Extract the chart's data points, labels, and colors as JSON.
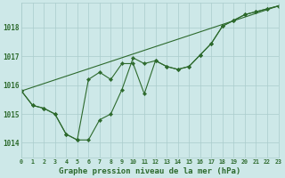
{
  "xlabel": "Graphe pression niveau de la mer (hPa)",
  "ylim": [
    1013.5,
    1018.85
  ],
  "xlim": [
    0,
    23
  ],
  "yticks": [
    1014,
    1015,
    1016,
    1017,
    1018
  ],
  "xticks": [
    0,
    1,
    2,
    3,
    4,
    5,
    6,
    7,
    8,
    9,
    10,
    11,
    12,
    13,
    14,
    15,
    16,
    17,
    18,
    19,
    20,
    21,
    22,
    23
  ],
  "background_color": "#cde8e8",
  "grid_color": "#aacccc",
  "line_color": "#2d6a2d",
  "line1_x": [
    0,
    1,
    2,
    3,
    4,
    5,
    6,
    7,
    8,
    9,
    10,
    11,
    12,
    13,
    14,
    15,
    16,
    17,
    18,
    19,
    20,
    21,
    22,
    23
  ],
  "line1_y": [
    1015.8,
    1015.3,
    1015.2,
    1015.0,
    1014.3,
    1014.1,
    1014.1,
    1014.8,
    1015.0,
    1015.85,
    1016.95,
    1016.75,
    1016.85,
    1016.65,
    1016.55,
    1016.65,
    1017.05,
    1017.45,
    1018.05,
    1018.25,
    1018.45,
    1018.55,
    1018.65,
    1018.75
  ],
  "line2_x": [
    0,
    1,
    2,
    3,
    4,
    5,
    6,
    7,
    8,
    9,
    10,
    11,
    12,
    13,
    14,
    15,
    16,
    17,
    18,
    19,
    20,
    21,
    22,
    23
  ],
  "line2_y": [
    1015.8,
    1015.3,
    1015.2,
    1015.0,
    1014.3,
    1014.1,
    1016.2,
    1016.45,
    1016.2,
    1016.75,
    1016.75,
    1015.7,
    1016.85,
    1016.65,
    1016.55,
    1016.65,
    1017.05,
    1017.45,
    1018.05,
    1018.25,
    1018.45,
    1018.55,
    1018.65,
    1018.75
  ],
  "trend_x": [
    0,
    23
  ],
  "trend_y": [
    1015.8,
    1018.75
  ]
}
